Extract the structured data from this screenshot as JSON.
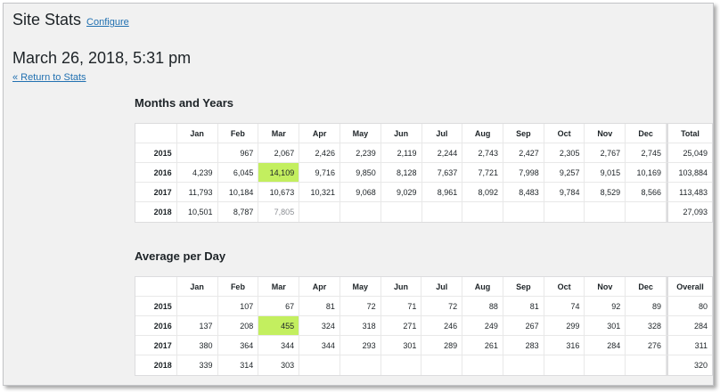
{
  "header": {
    "title": "Site Stats",
    "configure_label": "Configure"
  },
  "datetime": "March 26, 2018, 5:31 pm",
  "return_link": "« Return to Stats",
  "months": [
    "Jan",
    "Feb",
    "Mar",
    "Apr",
    "May",
    "Jun",
    "Jul",
    "Aug",
    "Sep",
    "Oct",
    "Nov",
    "Dec"
  ],
  "highlight_color": "#c3ef5f",
  "months_years": {
    "title": "Months and Years",
    "total_label": "Total",
    "rows": [
      {
        "year": "2015",
        "values": [
          "",
          "967",
          "2,067",
          "2,426",
          "2,239",
          "2,119",
          "2,244",
          "2,743",
          "2,427",
          "2,305",
          "2,767",
          "2,745"
        ],
        "total": "25,049"
      },
      {
        "year": "2016",
        "values": [
          "4,239",
          "6,045",
          "14,109",
          "9,716",
          "9,850",
          "8,128",
          "7,637",
          "7,721",
          "7,998",
          "9,257",
          "9,015",
          "10,169"
        ],
        "total": "103,884"
      },
      {
        "year": "2017",
        "values": [
          "11,793",
          "10,184",
          "10,673",
          "10,321",
          "9,068",
          "9,029",
          "8,961",
          "8,092",
          "8,483",
          "9,784",
          "8,529",
          "8,566"
        ],
        "total": "113,483"
      },
      {
        "year": "2018",
        "values": [
          "10,501",
          "8,787",
          "7,805",
          "",
          "",
          "",
          "",
          "",
          "",
          "",
          "",
          ""
        ],
        "total": "27,093"
      }
    ]
  },
  "average_per_day": {
    "title": "Average per Day",
    "total_label": "Overall",
    "rows": [
      {
        "year": "2015",
        "values": [
          "",
          "107",
          "67",
          "81",
          "72",
          "71",
          "72",
          "88",
          "81",
          "74",
          "92",
          "89"
        ],
        "total": "80"
      },
      {
        "year": "2016",
        "values": [
          "137",
          "208",
          "455",
          "324",
          "318",
          "271",
          "246",
          "249",
          "267",
          "299",
          "301",
          "328"
        ],
        "total": "284"
      },
      {
        "year": "2017",
        "values": [
          "380",
          "364",
          "344",
          "344",
          "293",
          "301",
          "289",
          "261",
          "283",
          "316",
          "284",
          "276"
        ],
        "total": "311"
      },
      {
        "year": "2018",
        "values": [
          "339",
          "314",
          "303",
          "",
          "",
          "",
          "",
          "",
          "",
          "",
          "",
          ""
        ],
        "total": "320"
      }
    ]
  }
}
